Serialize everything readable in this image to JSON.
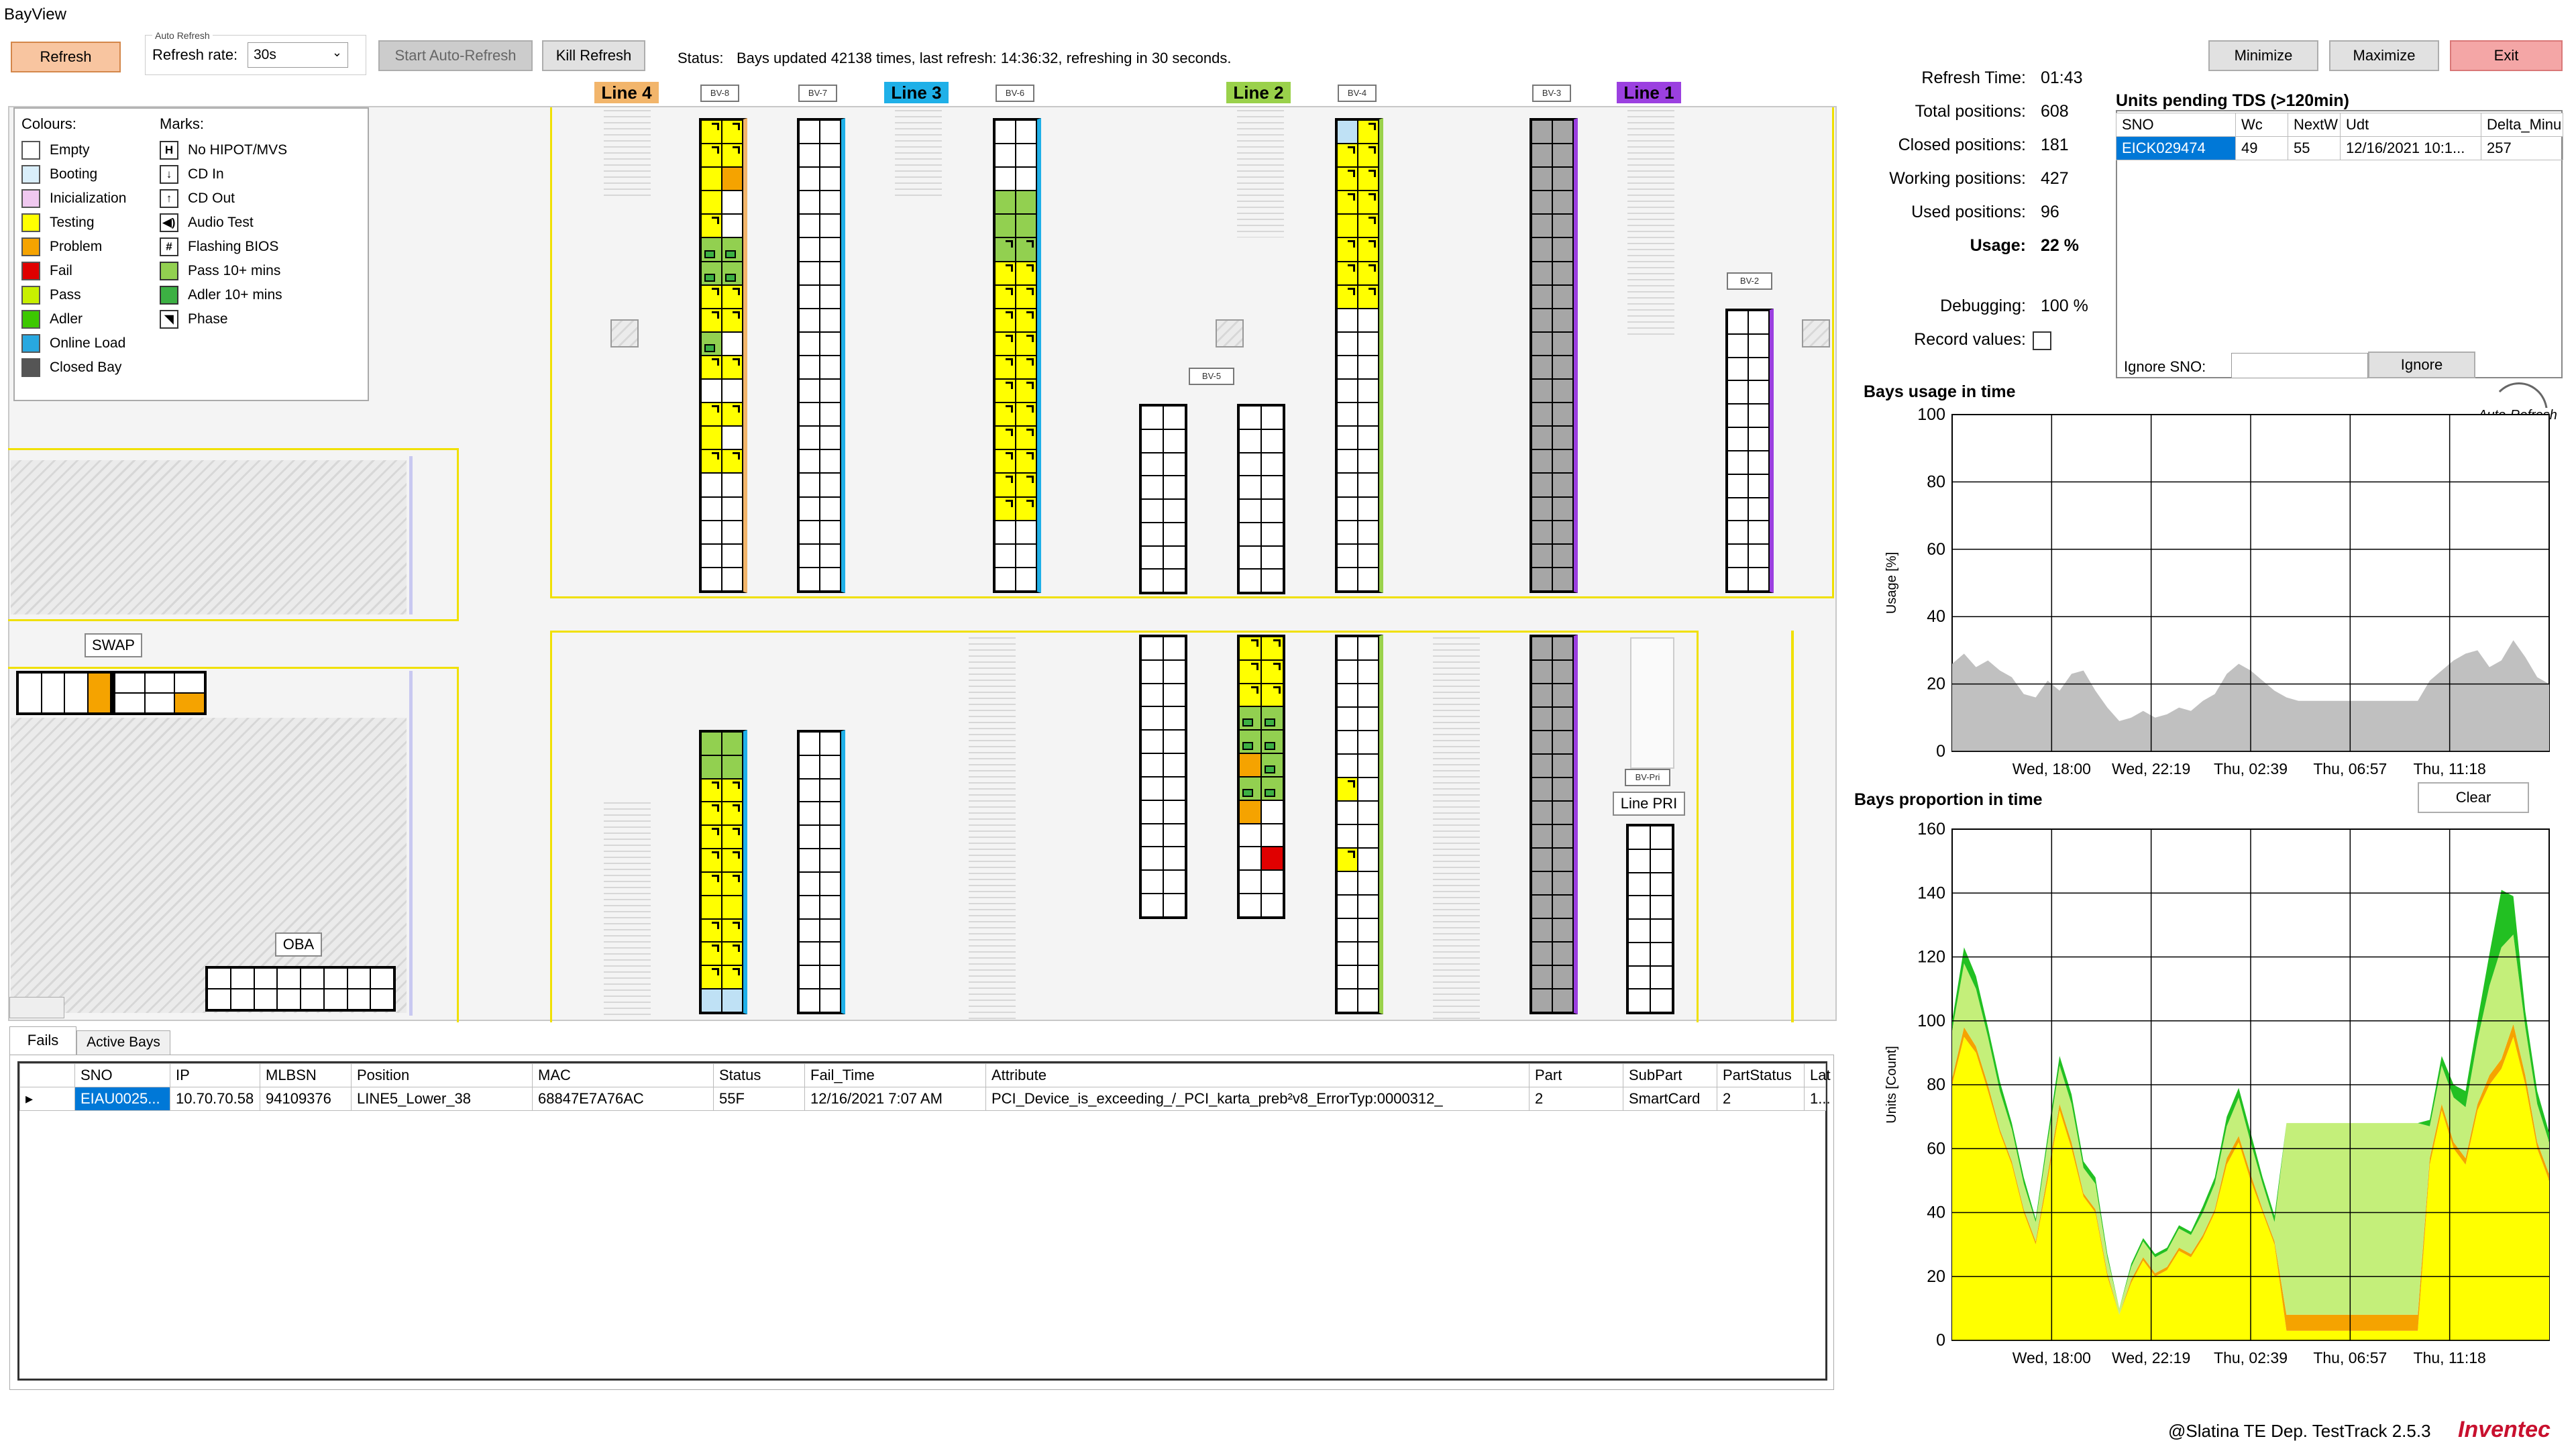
{
  "window": {
    "title": "BayView"
  },
  "toolbar": {
    "refresh_label": "Refresh",
    "auto_refresh_group": "Auto Refresh",
    "refresh_rate_label": "Refresh rate:",
    "refresh_rate_value": "30s",
    "start_auto_refresh_label": "Start Auto-Refresh",
    "kill_refresh_label": "Kill Refresh",
    "status_label": "Status:",
    "status_text": "Bays updated 42138 times, last refresh: 14:36:32, refreshing in 30 seconds.",
    "minimize_label": "Minimize",
    "maximize_label": "Maximize",
    "exit_label": "Exit"
  },
  "legend": {
    "colours_title": "Colours:",
    "marks_title": "Marks:",
    "colours": [
      {
        "label": "Empty",
        "color": "#ffffff"
      },
      {
        "label": "Booting",
        "color": "#d9eefa"
      },
      {
        "label": "Inicialization",
        "color": "#f0c8f0"
      },
      {
        "label": "Testing",
        "color": "#ffff00"
      },
      {
        "label": "Problem",
        "color": "#f5a300"
      },
      {
        "label": "Fail",
        "color": "#e00000"
      },
      {
        "label": "Pass",
        "color": "#c8f000"
      },
      {
        "label": "Adler",
        "color": "#3cc800"
      },
      {
        "label": "Online Load",
        "color": "#28a8e0"
      },
      {
        "label": "Closed Bay",
        "color": "#555555"
      }
    ],
    "marks": [
      {
        "label": "No HIPOT/MVS",
        "icon": "H"
      },
      {
        "label": "CD In",
        "icon": "↓"
      },
      {
        "label": "CD Out",
        "icon": "↑"
      },
      {
        "label": "Audio Test",
        "icon": "◀)"
      },
      {
        "label": "Flashing BIOS",
        "icon": "#"
      },
      {
        "label": "Pass 10+ mins",
        "icon": "▬",
        "color": "#92d050"
      },
      {
        "label": "Adler 10+ mins",
        "icon": "▬",
        "color": "#3cb043"
      },
      {
        "label": "Phase",
        "icon": "◥"
      }
    ]
  },
  "lines": {
    "line4": "Line 4",
    "line3": "Line 3",
    "line2": "Line 2",
    "line1": "Line 1",
    "line_pri": "Line PRI",
    "line4_color": "#f2b56b",
    "line3_color": "#1fb0e8",
    "line2_color": "#9ad14b",
    "line1_color": "#9b40e0"
  },
  "bays": {
    "bv8": "BV-8",
    "bv7": "BV-7",
    "bv6": "BV-6",
    "bv5": "BV-5",
    "bv4": "BV-4",
    "bv3": "BV-3",
    "bv2": "BV-2",
    "bvpri": "BV-Pri"
  },
  "areas": {
    "swap": "SWAP",
    "oba": "OBA"
  },
  "stats": {
    "refresh_time_label": "Refresh Time:",
    "refresh_time": "01:43",
    "total_label": "Total positions:",
    "total": "608",
    "closed_label": "Closed positions:",
    "closed": "181",
    "working_label": "Working positions:",
    "working": "427",
    "used_label": "Used positions:",
    "used": "96",
    "usage_label": "Usage:",
    "usage": "22 %",
    "debugging_label": "Debugging:",
    "debugging": "100 %",
    "record_label": "Record values:"
  },
  "pending": {
    "title": "Units pending TDS (>120min)",
    "columns": [
      "SNO",
      "Wc",
      "NextW",
      "Udt",
      "Delta_Minu"
    ],
    "rows": [
      [
        "EICK029474",
        "49",
        "55",
        "12/16/2021 10:1...",
        "257"
      ]
    ],
    "ignore_label": "Ignore SNO:",
    "ignore_button": "Ignore"
  },
  "tabs": {
    "fails": "Fails",
    "active_bays": "Active Bays"
  },
  "fails_table": {
    "columns": [
      "SNO",
      "IP",
      "MLBSN",
      "Position",
      "MAC",
      "Status",
      "Fail_Time",
      "Attribute",
      "Part",
      "SubPart",
      "PartStatus",
      "Lat"
    ],
    "rows": [
      [
        "EIAU0025...",
        "10.70.70.58",
        "94109376",
        "LINE5_Lower_38",
        "68847E7A76AC",
        "55F",
        "12/16/2021 7:07 AM",
        "PCI_Device_is_exceeding_/_PCI_karta_preb²v8_ErrorTyp:0000312_",
        "2",
        "SmartCard",
        "2",
        "1..."
      ]
    ]
  },
  "usage_chart": {
    "title": "Bays usage in time",
    "auto_refresh": "Auto-Refresh"
  },
  "proportion_chart": {
    "title": "Bays proportion in time",
    "clear_label": "Clear"
  },
  "chart_data": [
    {
      "type": "area",
      "title": "Bays usage in time",
      "ylabel": "Usage [%]",
      "xlabel": "",
      "ylim": [
        0,
        100
      ],
      "yticks": [
        0,
        20,
        40,
        60,
        80,
        100
      ],
      "xticks": [
        "Wed, 18:00",
        "Wed, 22:19",
        "Thu, 02:39",
        "Thu, 06:57",
        "Thu, 11:18"
      ],
      "x": [
        0,
        2,
        4,
        6,
        8,
        10,
        12,
        14,
        16,
        18,
        20,
        22,
        24,
        26,
        28,
        30,
        32,
        34,
        36,
        38,
        40,
        42,
        44,
        46,
        48,
        50,
        52,
        54,
        56,
        58,
        60,
        62,
        64,
        66,
        68,
        70,
        72,
        74,
        76,
        78,
        80,
        82,
        84,
        86,
        88,
        90,
        92,
        94,
        96,
        98,
        100
      ],
      "series": [
        {
          "name": "Usage",
          "color": "#c0c0c0",
          "values": [
            26,
            29,
            25,
            27,
            24,
            22,
            17,
            16,
            21,
            18,
            23,
            24,
            18,
            13,
            9,
            10,
            12,
            10,
            11,
            13,
            12,
            15,
            17,
            23,
            26,
            24,
            21,
            18,
            16,
            15,
            15,
            15,
            15,
            15,
            15,
            15,
            15,
            15,
            15,
            15,
            21,
            24,
            27,
            29,
            30,
            25,
            27,
            33,
            28,
            22,
            20
          ]
        }
      ]
    },
    {
      "type": "area",
      "title": "Bays proportion in time",
      "ylabel": "Units [Count]",
      "xlabel": "",
      "ylim": [
        0,
        160
      ],
      "yticks": [
        0,
        20,
        40,
        60,
        80,
        100,
        120,
        140,
        160
      ],
      "xticks": [
        "Wed, 18:00",
        "Wed, 22:19",
        "Thu, 02:39",
        "Thu, 06:57",
        "Thu, 11:18"
      ],
      "x": [
        0,
        2,
        4,
        6,
        8,
        10,
        12,
        14,
        16,
        18,
        20,
        22,
        24,
        26,
        28,
        30,
        32,
        34,
        36,
        38,
        40,
        42,
        44,
        46,
        48,
        50,
        52,
        54,
        56,
        58,
        60,
        62,
        64,
        66,
        68,
        70,
        72,
        74,
        76,
        78,
        80,
        82,
        84,
        86,
        88,
        90,
        92,
        94,
        96,
        98,
        100
      ],
      "series": [
        {
          "name": "Testing",
          "color": "#ffff00",
          "values": [
            80,
            95,
            90,
            78,
            65,
            55,
            40,
            30,
            50,
            72,
            60,
            45,
            40,
            20,
            8,
            18,
            25,
            20,
            22,
            28,
            26,
            32,
            40,
            55,
            62,
            50,
            40,
            30,
            3,
            3,
            3,
            3,
            3,
            3,
            3,
            3,
            3,
            3,
            3,
            3,
            55,
            72,
            60,
            55,
            72,
            80,
            85,
            95,
            80,
            60,
            50
          ]
        },
        {
          "name": "Problem",
          "color": "#f5a300",
          "values": [
            2,
            3,
            2,
            2,
            1,
            1,
            1,
            1,
            2,
            2,
            2,
            1,
            1,
            1,
            0,
            1,
            1,
            1,
            1,
            1,
            1,
            1,
            1,
            2,
            2,
            2,
            1,
            1,
            5,
            5,
            5,
            5,
            5,
            5,
            5,
            5,
            5,
            5,
            5,
            5,
            2,
            2,
            2,
            2,
            2,
            3,
            3,
            4,
            3,
            2,
            2
          ]
        },
        {
          "name": "Pass",
          "color": "#c4ef7a",
          "values": [
            15,
            20,
            18,
            15,
            12,
            10,
            8,
            6,
            10,
            12,
            12,
            8,
            8,
            5,
            2,
            4,
            5,
            5,
            5,
            6,
            6,
            7,
            8,
            10,
            12,
            10,
            8,
            6,
            60,
            60,
            60,
            60,
            60,
            60,
            60,
            60,
            60,
            60,
            60,
            60,
            10,
            12,
            14,
            16,
            20,
            28,
            35,
            28,
            15,
            12,
            10
          ]
        },
        {
          "name": "Adler",
          "color": "#22c022",
          "values": [
            3,
            5,
            4,
            3,
            3,
            2,
            2,
            1,
            2,
            3,
            3,
            2,
            2,
            1,
            0,
            1,
            1,
            1,
            1,
            1,
            1,
            2,
            2,
            3,
            3,
            3,
            2,
            2,
            0,
            0,
            0,
            0,
            0,
            0,
            0,
            0,
            0,
            0,
            0,
            0,
            2,
            3,
            4,
            5,
            6,
            10,
            18,
            12,
            5,
            4,
            3
          ]
        }
      ]
    }
  ],
  "footer": {
    "credit": "@Slatina TE Dep. TestTrack  2.5.3",
    "brand": "Inventec",
    "brand_color": "#c8102e"
  }
}
